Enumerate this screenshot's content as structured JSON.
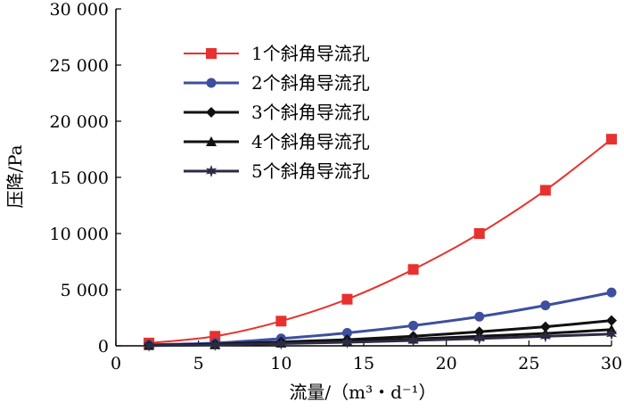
{
  "chart_data": {
    "type": "line",
    "xlabel": "流量/（m³・d⁻¹）",
    "ylabel": "压降/Pa",
    "xlim": [
      0,
      30
    ],
    "ylim": [
      0,
      30000
    ],
    "x_ticks": [
      0,
      5,
      10,
      15,
      20,
      25,
      30
    ],
    "y_ticks": [
      0,
      5000,
      10000,
      15000,
      20000,
      25000,
      30000
    ],
    "x_tick_labels": [
      "0",
      "5",
      "10",
      "15",
      "20",
      "25",
      "30"
    ],
    "y_tick_labels": [
      "0",
      "5 000",
      "10 000",
      "15 000",
      "20 000",
      "25 000",
      "30 000"
    ],
    "grid": false,
    "legend_position": "top-center",
    "x": [
      2,
      6,
      10,
      14,
      18,
      22,
      26,
      30
    ],
    "series": [
      {
        "name": "1个斜角导流孔",
        "color": "#e8312f",
        "marker": "square",
        "values": [
          250,
          850,
          2200,
          4150,
          6800,
          10000,
          13850,
          18400
        ]
      },
      {
        "name": "2个斜角导流孔",
        "color": "#3d4f9e",
        "marker": "circle",
        "values": [
          100,
          250,
          650,
          1150,
          1800,
          2600,
          3600,
          4750
        ]
      },
      {
        "name": "3个斜角导流孔",
        "color": "#111111",
        "marker": "diamond",
        "values": [
          50,
          150,
          350,
          550,
          850,
          1250,
          1700,
          2250
        ]
      },
      {
        "name": "4个斜角导流孔",
        "color": "#111111",
        "marker": "triangle",
        "values": [
          30,
          100,
          250,
          400,
          600,
          850,
          1100,
          1450
        ]
      },
      {
        "name": "5个斜角导流孔",
        "color": "#2b2b44",
        "marker": "star",
        "values": [
          20,
          80,
          200,
          320,
          480,
          650,
          850,
          1050
        ]
      }
    ]
  }
}
